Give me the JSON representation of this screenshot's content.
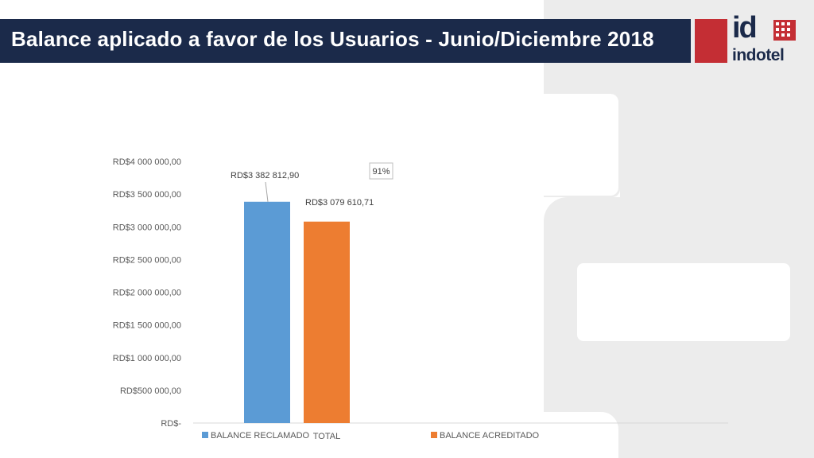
{
  "header": {
    "title": "Balance aplicado a favor de los Usuarios - Junio/Diciembre 2018"
  },
  "logo": {
    "mark": "id",
    "name": "indotel"
  },
  "colors": {
    "title_bar": "#1b2a4a",
    "brand_red": "#c42e34",
    "series_reclamado": "#5b9bd5",
    "series_acreditado": "#ed7d31",
    "background_shape": "#ececec"
  },
  "chart_data": {
    "type": "bar",
    "categories": [
      "TOTAL"
    ],
    "series": [
      {
        "name": "BALANCE RECLAMADO",
        "values": [
          3382812.9
        ],
        "label": "RD$3 382 812,90",
        "color": "#5b9bd5"
      },
      {
        "name": "BALANCE ACREDITADO",
        "values": [
          3079610.71
        ],
        "label": "RD$3 079 610,71",
        "color": "#ed7d31"
      }
    ],
    "ylim": [
      0,
      4000000
    ],
    "yticks": [
      {
        "value": 0,
        "label": "RD$-"
      },
      {
        "value": 500000,
        "label": "RD$500 000,00"
      },
      {
        "value": 1000000,
        "label": "RD$1 000 000,00"
      },
      {
        "value": 1500000,
        "label": "RD$1 500 000,00"
      },
      {
        "value": 2000000,
        "label": "RD$2 000 000,00"
      },
      {
        "value": 2500000,
        "label": "RD$2 500 000,00"
      },
      {
        "value": 3000000,
        "label": "RD$3 000 000,00"
      },
      {
        "value": 3500000,
        "label": "RD$3 500 000,00"
      },
      {
        "value": 4000000,
        "label": "RD$4 000 000,00"
      }
    ],
    "annotation": "91%",
    "grid": false,
    "legend_position": "bottom"
  }
}
